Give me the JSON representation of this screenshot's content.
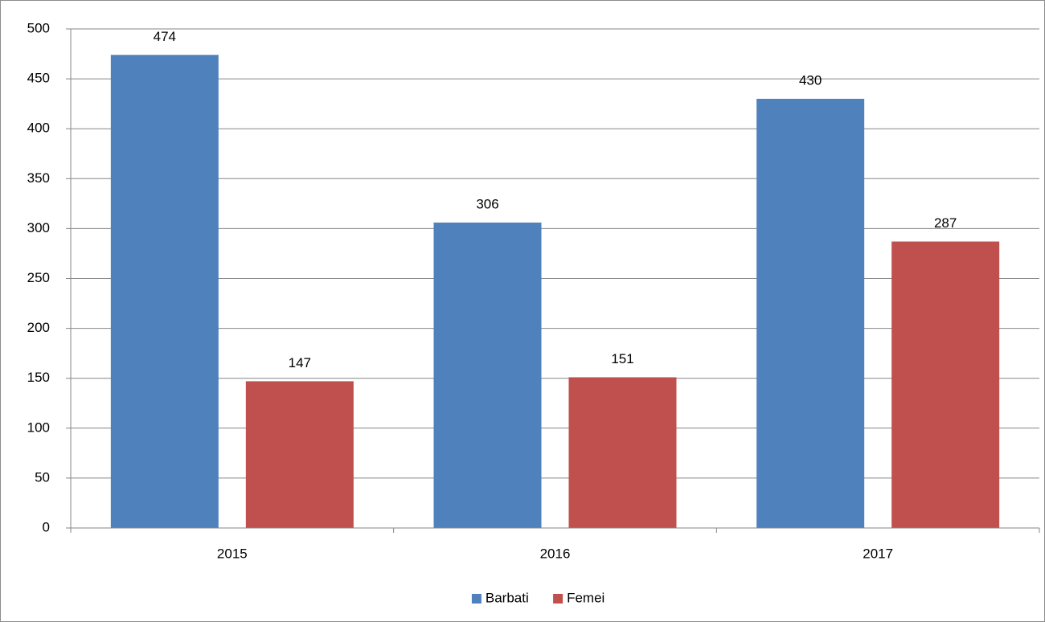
{
  "chart_data": {
    "type": "bar",
    "categories": [
      "2015",
      "2016",
      "2017"
    ],
    "series": [
      {
        "name": "Barbati",
        "color": "#4f81bd",
        "values": [
          474,
          306,
          430
        ]
      },
      {
        "name": "Femei",
        "color": "#c0504d",
        "values": [
          147,
          151,
          287
        ]
      }
    ],
    "ylim": [
      0,
      500
    ],
    "yticks": [
      0,
      50,
      100,
      150,
      200,
      250,
      300,
      350,
      400,
      450,
      500
    ],
    "grid": true,
    "legend": "bottom"
  }
}
